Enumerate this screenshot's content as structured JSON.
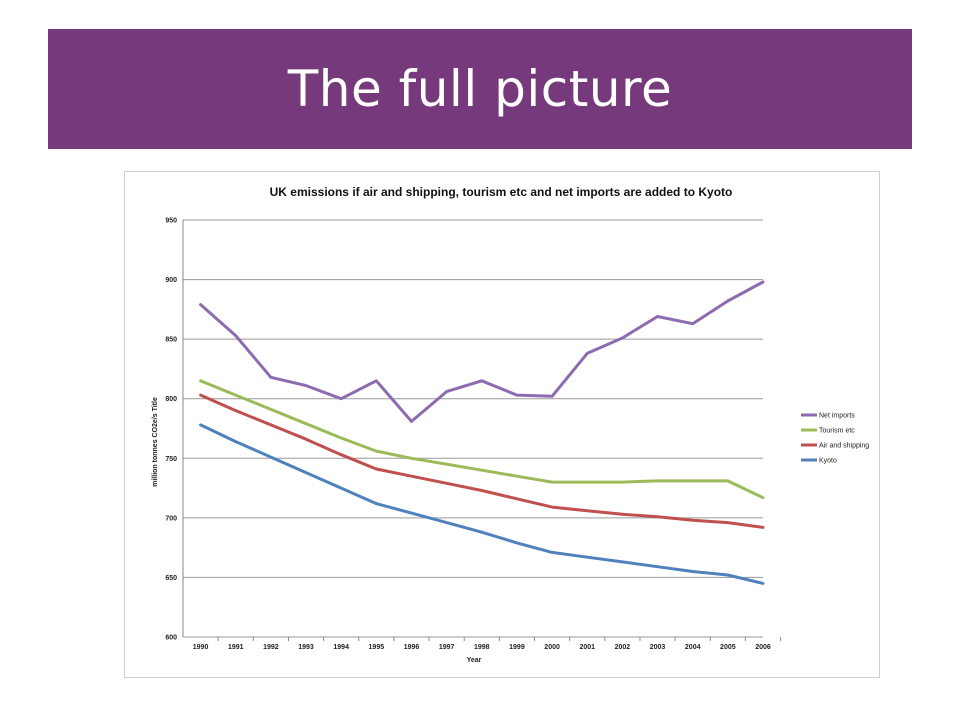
{
  "slide": {
    "title": "The full picture",
    "banner_color": "#763a7c"
  },
  "chart_data": {
    "type": "line",
    "title": "UK emissions if air and shipping, tourism etc and net imports are added to Kyoto",
    "xlabel": "Year",
    "ylabel": "million tonnes CO2e/s Title",
    "ylim": [
      600,
      950
    ],
    "yticks": [
      600,
      650,
      700,
      750,
      800,
      850,
      900,
      950
    ],
    "grid": true,
    "legend_position": "right",
    "categories": [
      "1990",
      "1991",
      "1992",
      "1993",
      "1994",
      "1995",
      "1996",
      "1997",
      "1998",
      "1999",
      "2000",
      "2001",
      "2002",
      "2003",
      "2004",
      "2005",
      "2006"
    ],
    "series": [
      {
        "name": "Net imports",
        "color": "#8d6bb0",
        "values": [
          879,
          853,
          818,
          811,
          800,
          815,
          781,
          806,
          815,
          803,
          802,
          838,
          851,
          869,
          863,
          882,
          898
        ]
      },
      {
        "name": "Tourism etc",
        "color": "#9bbb59",
        "values": [
          815,
          803,
          791,
          779,
          767,
          756,
          750,
          745,
          740,
          735,
          730,
          730,
          730,
          731,
          731,
          731,
          717
        ]
      },
      {
        "name": "Air and shipping",
        "color": "#c0504d",
        "values": [
          803,
          790,
          778,
          766,
          753,
          741,
          735,
          729,
          723,
          716,
          709,
          706,
          703,
          701,
          698,
          696,
          692
        ]
      },
      {
        "name": "Kyoto",
        "color": "#4f81bd",
        "values": [
          778,
          764,
          751,
          738,
          725,
          712,
          704,
          696,
          688,
          679,
          671,
          667,
          663,
          659,
          655,
          652,
          645
        ]
      }
    ]
  }
}
